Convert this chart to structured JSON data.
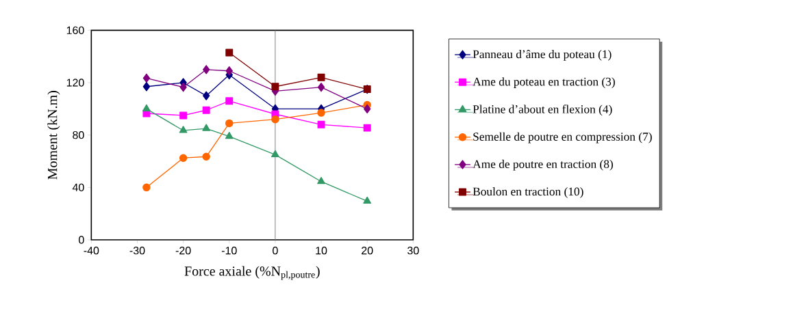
{
  "chart_data": {
    "type": "line",
    "xlabel": "Force axiale  (%N$_{pl,poutre}$)",
    "ylabel": "Moment (kN.m)",
    "xlim": [
      -40,
      30
    ],
    "xticks": [
      -40,
      -30,
      -20,
      -10,
      0,
      10,
      20,
      30
    ],
    "ylim": [
      0,
      160
    ],
    "yticks": [
      0,
      40,
      80,
      120,
      160
    ],
    "grid": false,
    "legend": "right",
    "ref_lines": [
      {
        "axis": "x",
        "value": 0,
        "color": "#808080"
      }
    ],
    "series": [
      {
        "name": "Panneau d’âme du poteau (1)",
        "color": "#000080",
        "marker": "diamond",
        "x": [
          -28,
          -20,
          -15,
          -10,
          0,
          10,
          20
        ],
        "values": [
          117,
          120,
          110,
          126,
          100,
          100,
          115
        ]
      },
      {
        "name": "Ame du poteau en traction (3)",
        "color": "#ff00ff",
        "marker": "square",
        "x": [
          -28,
          -20,
          -15,
          -10,
          0,
          10,
          20
        ],
        "values": [
          96.5,
          95,
          99,
          106,
          96,
          88,
          85.5
        ]
      },
      {
        "name": "Platine d’about en flexion (4)",
        "color": "#339966",
        "marker": "triangle",
        "x": [
          -28,
          -20,
          -15,
          -10,
          0,
          10,
          20
        ],
        "values": [
          100,
          83.5,
          85,
          79,
          65,
          44.5,
          29.5
        ]
      },
      {
        "name": "Semelle de poutre en compression (7)",
        "color": "#ff6600",
        "marker": "circle",
        "x": [
          -28,
          -20,
          -15,
          -10,
          0,
          10,
          20
        ],
        "values": [
          40,
          62.5,
          63.5,
          89,
          92,
          97,
          103
        ]
      },
      {
        "name": "Ame de poutre en traction (8)",
        "color": "#800080",
        "marker": "diamond",
        "x": [
          -28,
          -20,
          -15,
          -10,
          0,
          10,
          20
        ],
        "values": [
          123.5,
          116.5,
          130,
          129,
          113.5,
          116.5,
          100
        ]
      },
      {
        "name": "Boulon en traction (10)",
        "color": "#800000",
        "marker": "square",
        "x": [
          -10,
          0,
          10,
          20
        ],
        "values": [
          143,
          117,
          124,
          115
        ]
      }
    ]
  }
}
